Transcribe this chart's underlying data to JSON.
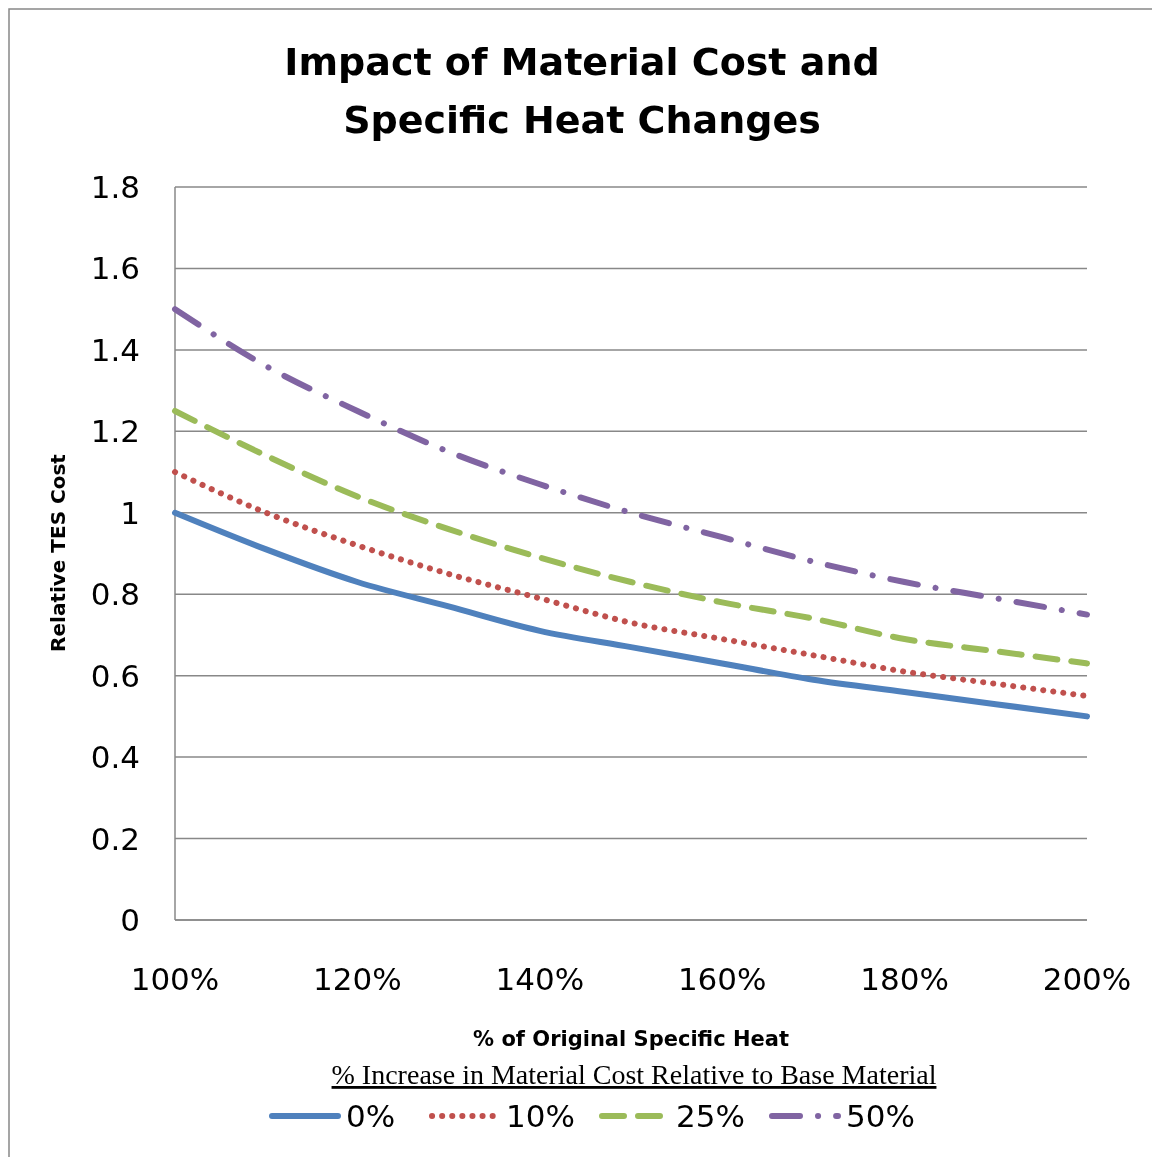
{
  "chart_data": {
    "type": "line",
    "title": "Impact of Material Cost and Specific Heat Changes",
    "xlabel": "% of Original Specific Heat",
    "ylabel": "Relative TES Cost",
    "legend_title": "% Increase in Material Cost Relative to Base Material",
    "x": [
      100,
      110,
      120,
      130,
      140,
      150,
      160,
      170,
      180,
      190,
      200
    ],
    "series": [
      {
        "name": "0%",
        "color": "#4f81bd",
        "line_style": "solid",
        "values": [
          1,
          0.91,
          0.83,
          0.77,
          0.71,
          0.67,
          0.63,
          0.59,
          0.56,
          0.53,
          0.5
        ]
      },
      {
        "name": "10%",
        "color": "#c0504d",
        "line_style": "dotted",
        "values": [
          1.1,
          1,
          0.92,
          0.85,
          0.79,
          0.73,
          0.69,
          0.65,
          0.61,
          0.58,
          0.55
        ]
      },
      {
        "name": "25%",
        "color": "#9bbb59",
        "line_style": "dashed",
        "values": [
          1.25,
          1.14,
          1.04,
          0.96,
          0.89,
          0.83,
          0.78,
          0.74,
          0.69,
          0.66,
          0.63
        ]
      },
      {
        "name": "50%",
        "color": "#8064a2",
        "line_style": "dashdot",
        "values": [
          1.5,
          1.36,
          1.25,
          1.15,
          1.07,
          1,
          0.94,
          0.88,
          0.83,
          0.79,
          0.75
        ]
      }
    ],
    "xlim": [
      100,
      200
    ],
    "xticks": [
      {
        "value": 100,
        "label": "100%"
      },
      {
        "value": 120,
        "label": "120%"
      },
      {
        "value": 140,
        "label": "140%"
      },
      {
        "value": 160,
        "label": "160%"
      },
      {
        "value": 180,
        "label": "180%"
      },
      {
        "value": 200,
        "label": "200%"
      }
    ],
    "ylim": [
      0,
      1.8
    ],
    "yticks": [
      0,
      0.2,
      0.4,
      0.6,
      0.8,
      1,
      1.2,
      1.4,
      1.6,
      1.8
    ],
    "grid": "y",
    "legend": "bottom",
    "marker": "none"
  }
}
